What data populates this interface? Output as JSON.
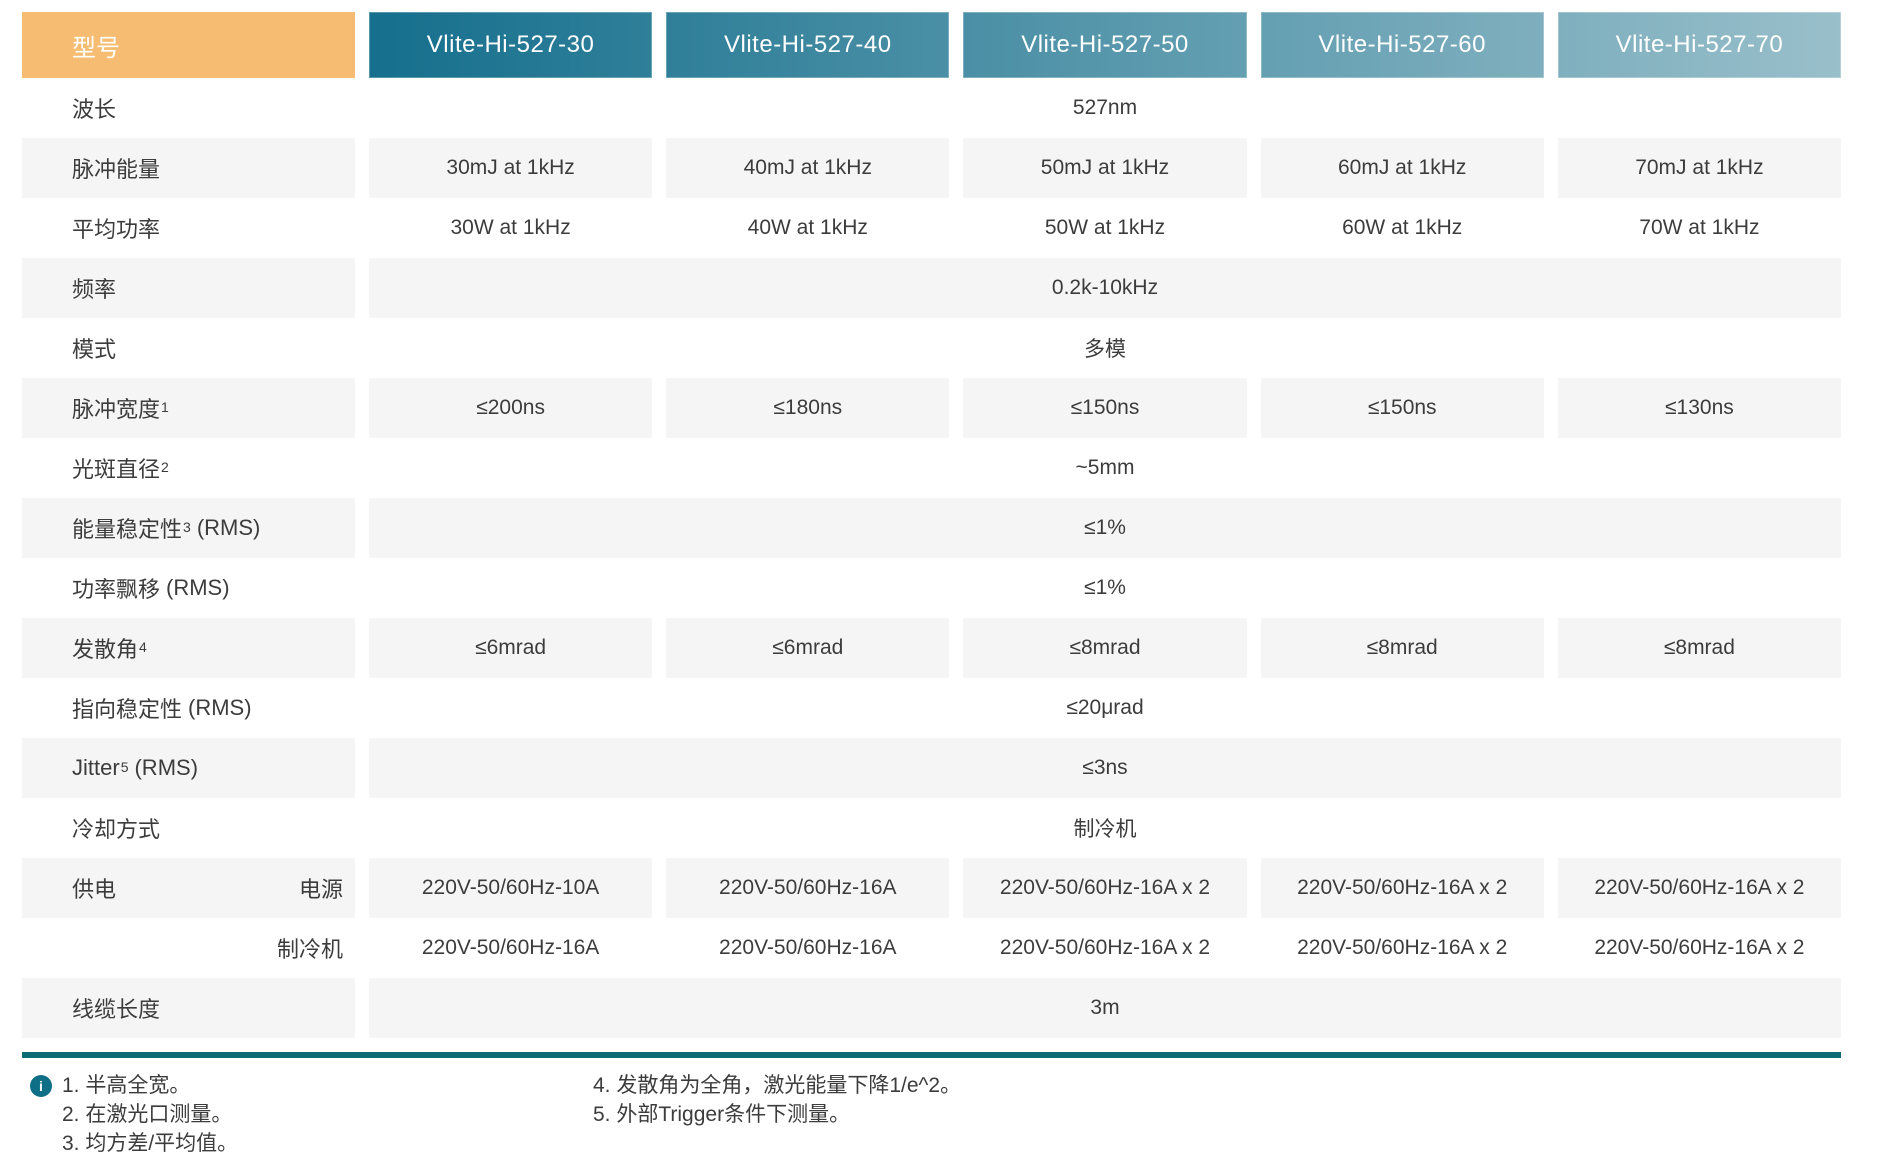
{
  "colors": {
    "corner_bg": "#F6BC71",
    "header_teal_dark": "#156F8D",
    "header_teal_light": "#99BFCA",
    "row_shade": "#F5F5F6",
    "text": "#3C3C3C",
    "header_text": "#FFFFFF",
    "divider": "#0D6B76",
    "info_icon_bg": "#0F6F86"
  },
  "table": {
    "corner_label": "型号",
    "models": [
      "Vlite-Hi-527-30",
      "Vlite-Hi-527-40",
      "Vlite-Hi-527-50",
      "Vlite-Hi-527-60",
      "Vlite-Hi-527-70"
    ],
    "rows": [
      {
        "type": "span",
        "label": "波长",
        "value": "527nm"
      },
      {
        "type": "cells",
        "label": "脉冲能量",
        "values": [
          "30mJ at 1kHz",
          "40mJ at 1kHz",
          "50mJ at 1kHz",
          "60mJ at 1kHz",
          "70mJ at 1kHz"
        ]
      },
      {
        "type": "cells",
        "label": "平均功率",
        "values": [
          "30W at 1kHz",
          "40W at 1kHz",
          "50W at 1kHz",
          "60W at 1kHz",
          "70W at 1kHz"
        ]
      },
      {
        "type": "span",
        "label": "频率",
        "value": "0.2k-10kHz"
      },
      {
        "type": "span",
        "label": "模式",
        "value": "多模"
      },
      {
        "type": "cells",
        "label": "脉冲宽度",
        "sup": "1",
        "values": [
          "≤200ns",
          "≤180ns",
          "≤150ns",
          "≤150ns",
          "≤130ns"
        ]
      },
      {
        "type": "span",
        "label": "光斑直径",
        "sup": "2",
        "value": "~5mm"
      },
      {
        "type": "span",
        "label": "能量稳定性",
        "sup": "3",
        "suffix": "(RMS)",
        "value": "≤1%"
      },
      {
        "type": "span",
        "label": "功率飘移",
        "suffix": "(RMS)",
        "value": "≤1%"
      },
      {
        "type": "cells",
        "label": "发散角",
        "sup": "4",
        "values": [
          "≤6mrad",
          "≤6mrad",
          "≤8mrad",
          "≤8mrad",
          "≤8mrad"
        ]
      },
      {
        "type": "span",
        "label": "指向稳定性",
        "suffix": "(RMS)",
        "value": "≤20μrad"
      },
      {
        "type": "span",
        "label": "Jitter",
        "sup": "5",
        "suffix": "(RMS)",
        "value": "≤3ns"
      },
      {
        "type": "span",
        "label": "冷却方式",
        "value": "制冷机"
      },
      {
        "type": "cells",
        "label": "供电",
        "sublabel": "电源",
        "values": [
          "220V-50/60Hz-10A",
          "220V-50/60Hz-16A",
          "220V-50/60Hz-16A x 2",
          "220V-50/60Hz-16A x 2",
          "220V-50/60Hz-16A x 2"
        ]
      },
      {
        "type": "cells",
        "label": "",
        "sublabel": "制冷机",
        "values": [
          "220V-50/60Hz-16A",
          "220V-50/60Hz-16A",
          "220V-50/60Hz-16A x 2",
          "220V-50/60Hz-16A x 2",
          "220V-50/60Hz-16A x 2"
        ]
      },
      {
        "type": "span",
        "label": "线缆长度",
        "value": "3m"
      }
    ]
  },
  "footnotes": {
    "icon_glyph": "i",
    "col1": [
      "1. 半高全宽。",
      "2. 在激光口测量。",
      "3. 均方差/平均值。"
    ],
    "col2": [
      "4. 发散角为全角，激光能量下降1/e^2。",
      "5. 外部Trigger条件下测量。"
    ]
  }
}
